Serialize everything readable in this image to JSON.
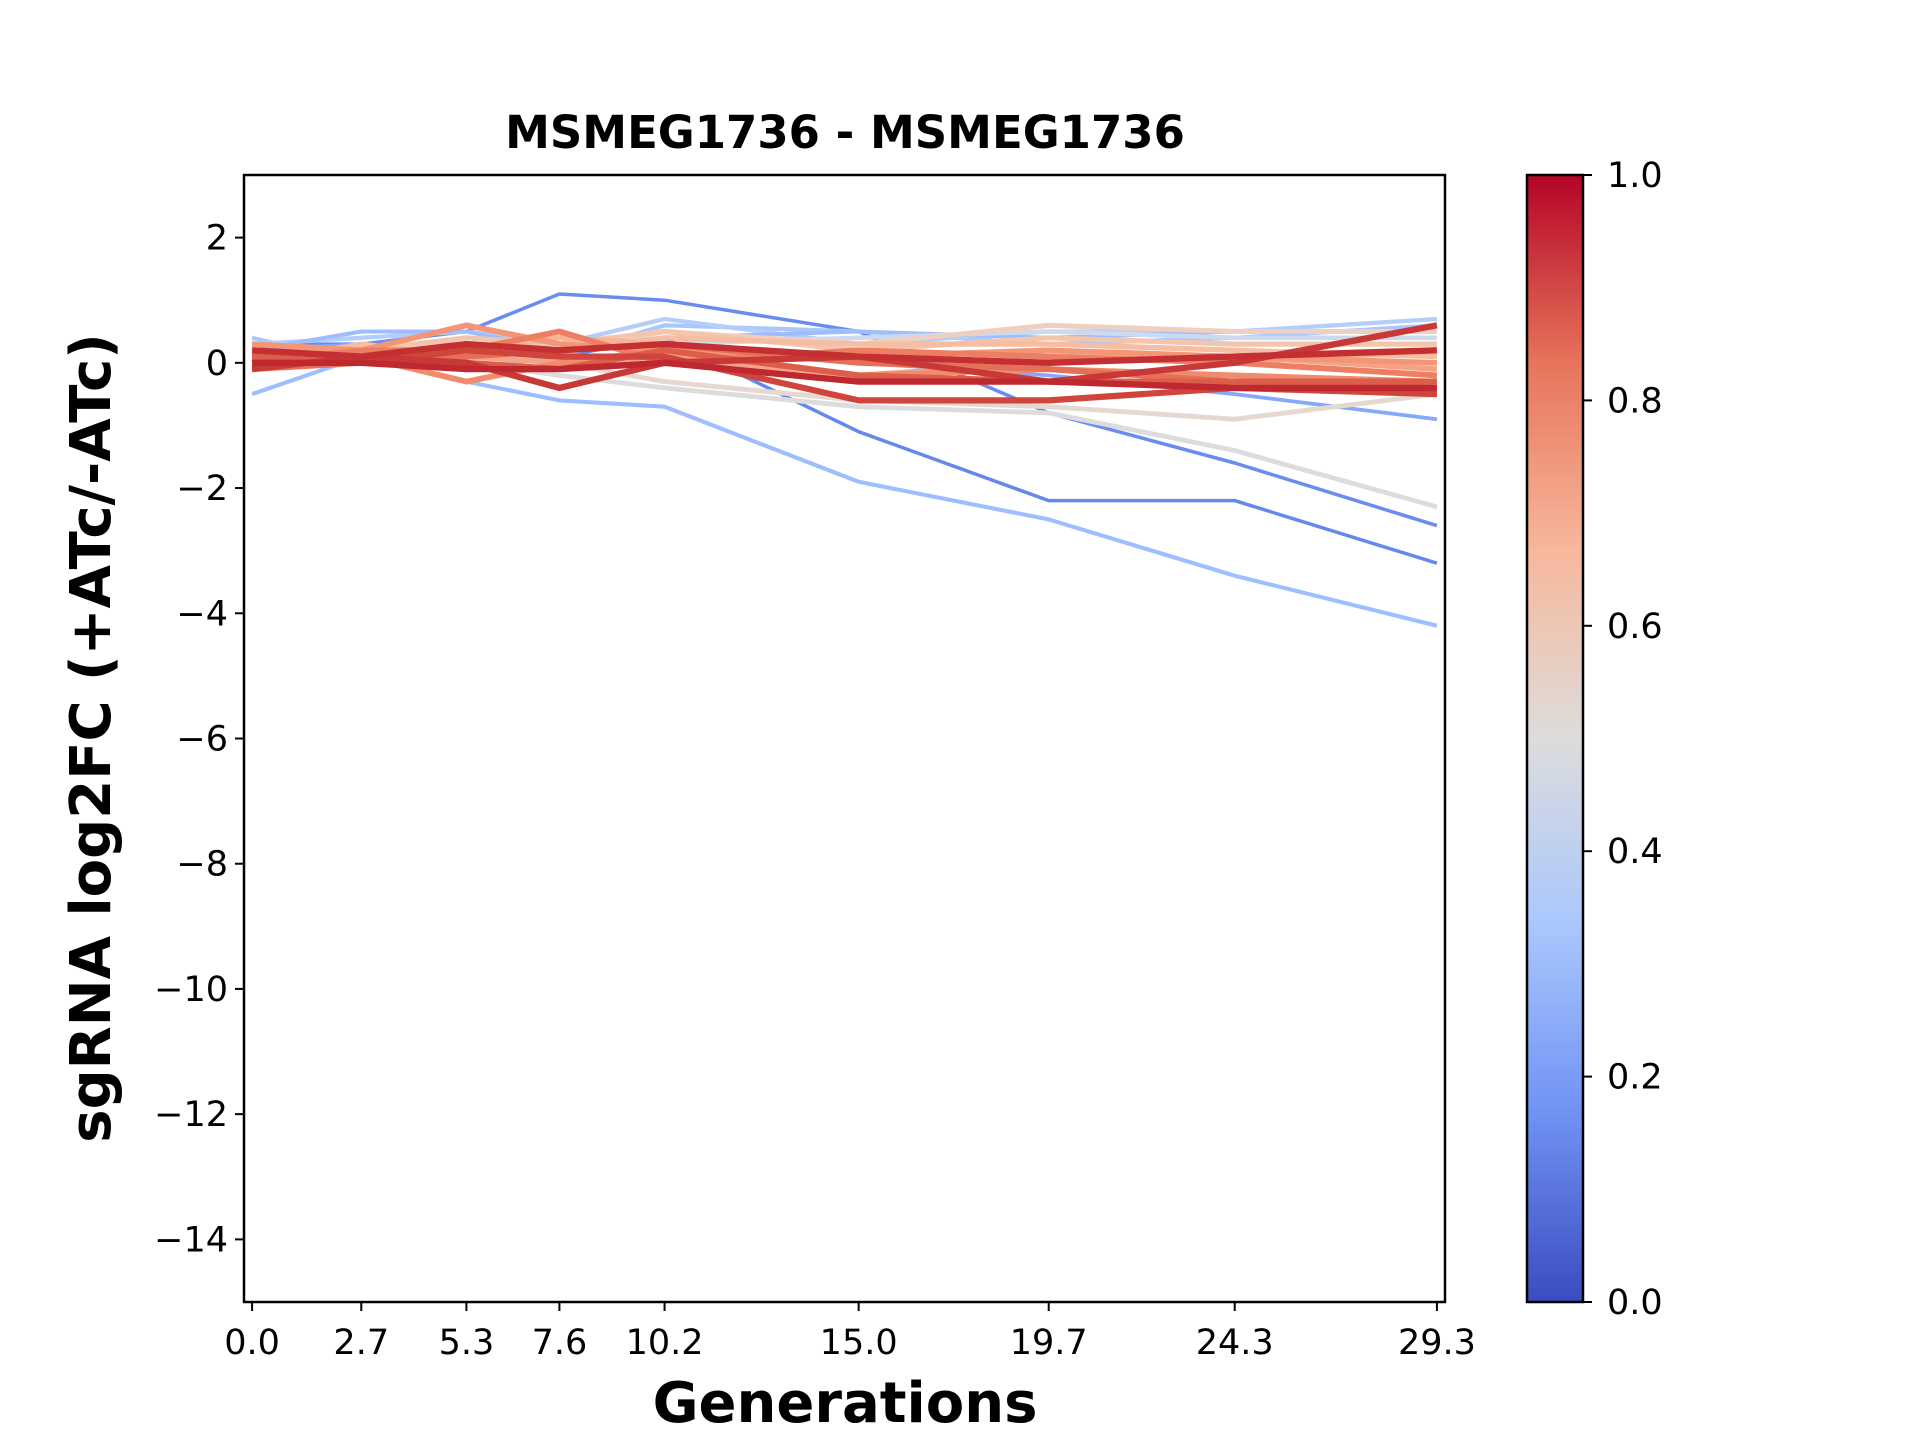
{
  "chart_data": {
    "type": "line",
    "title": "MSMEG1736 - MSMEG1736",
    "xlabel": "Generations",
    "ylabel": "sgRNA log2FC (+ATc/-ATc)",
    "x": [
      0.0,
      2.7,
      5.3,
      7.6,
      10.2,
      15.0,
      19.7,
      24.3,
      29.3
    ],
    "x_tick_labels": [
      "0.0",
      "2.7",
      "5.3",
      "7.6",
      "10.2",
      "15.0",
      "19.7",
      "24.3",
      "29.3"
    ],
    "ylim": [
      -15,
      3
    ],
    "y_ticks": [
      2,
      0,
      -2,
      -4,
      -6,
      -8,
      -10,
      -12,
      -14
    ],
    "y_tick_labels": [
      "2",
      "0",
      "−2",
      "−4",
      "−6",
      "−8",
      "−10",
      "−12",
      "−14"
    ],
    "colorbar": {
      "range": [
        0.0,
        1.0
      ],
      "ticks": [
        "1.0",
        "0.8",
        "0.6",
        "0.4",
        "0.2",
        "0.0"
      ],
      "colormap": "coolwarm",
      "stops": [
        "#3b4cc0",
        "#6f92f3",
        "#aac7fd",
        "#dddcdc",
        "#f7b89c",
        "#e7745b",
        "#b40426"
      ]
    },
    "grid": false,
    "series": [
      {
        "color_value": 0.32,
        "color": "#9ebeff",
        "values": [
          -0.5,
          0.1,
          -0.3,
          -0.6,
          -0.7,
          -1.9,
          -2.5,
          -3.4,
          -4.2
        ]
      },
      {
        "color_value": 0.14,
        "color": "#6687ed",
        "values": [
          0.1,
          0.2,
          0.2,
          0.1,
          0.4,
          -1.1,
          -2.2,
          -2.2,
          -3.2
        ]
      },
      {
        "color_value": 0.15,
        "color": "#6a8bef",
        "values": [
          0.3,
          0.3,
          0.5,
          1.1,
          1.0,
          0.5,
          -0.8,
          -1.6,
          -2.6
        ]
      },
      {
        "color_value": 0.5,
        "color": "#dddcdc",
        "values": [
          0.0,
          0.1,
          0.0,
          -0.2,
          -0.4,
          -0.7,
          -0.8,
          -1.4,
          -2.3
        ]
      },
      {
        "color_value": 0.24,
        "color": "#85a8fc",
        "values": [
          0.2,
          0.3,
          0.1,
          0.0,
          0.2,
          0.0,
          -0.2,
          -0.5,
          -0.9
        ]
      },
      {
        "color_value": 0.35,
        "color": "#aac7fd",
        "values": [
          0.4,
          0.0,
          -0.1,
          0.1,
          0.6,
          0.5,
          0.3,
          0.4,
          0.6
        ]
      },
      {
        "color_value": 0.38,
        "color": "#b5cdfa",
        "values": [
          0.3,
          0.4,
          0.5,
          0.3,
          0.7,
          0.3,
          0.5,
          0.5,
          0.7
        ]
      },
      {
        "color_value": 0.3,
        "color": "#9dbdfc",
        "values": [
          0.2,
          0.5,
          0.5,
          0.2,
          0.4,
          0.5,
          0.4,
          0.5,
          0.5
        ]
      },
      {
        "color_value": 0.45,
        "color": "#cdd9ec",
        "values": [
          0.0,
          0.2,
          0.3,
          0.2,
          0.3,
          0.4,
          0.5,
          0.4,
          0.4
        ]
      },
      {
        "color_value": 0.55,
        "color": "#e5d8d1",
        "values": [
          0.0,
          0.0,
          0.1,
          0.0,
          -0.3,
          -0.6,
          -0.7,
          -0.9,
          -0.5
        ]
      },
      {
        "color_value": 0.6,
        "color": "#efcfbf",
        "values": [
          0.1,
          0.2,
          0.3,
          0.2,
          0.5,
          0.3,
          0.6,
          0.5,
          0.5
        ]
      },
      {
        "color_value": 0.64,
        "color": "#f4c5ad",
        "values": [
          0.3,
          0.2,
          0.4,
          0.3,
          0.5,
          0.2,
          0.4,
          0.3,
          0.3
        ]
      },
      {
        "color_value": 0.68,
        "color": "#f6bda2",
        "values": [
          0.0,
          0.3,
          0.1,
          0.2,
          0.4,
          0.3,
          0.3,
          0.2,
          0.1
        ]
      },
      {
        "color_value": 0.72,
        "color": "#f7b396",
        "values": [
          -0.1,
          0.1,
          0.2,
          0.4,
          0.3,
          0.1,
          0.2,
          0.0,
          0.2
        ]
      },
      {
        "color_value": 0.75,
        "color": "#f6a385",
        "values": [
          0.2,
          0.0,
          0.1,
          0.0,
          0.1,
          -0.2,
          0.0,
          0.1,
          -0.1
        ]
      },
      {
        "color_value": 0.77,
        "color": "#f39577",
        "values": [
          0.3,
          0.2,
          0.6,
          0.3,
          0.2,
          0.1,
          0.2,
          0.1,
          0.0
        ]
      },
      {
        "color_value": 0.8,
        "color": "#f08b6e",
        "values": [
          0.1,
          0.1,
          -0.3,
          0.0,
          0.2,
          -0.2,
          -0.1,
          -0.2,
          -0.3
        ]
      },
      {
        "color_value": 0.82,
        "color": "#ec7f63",
        "values": [
          0.0,
          0.2,
          0.2,
          0.5,
          0.0,
          0.2,
          0.1,
          0.0,
          -0.2
        ]
      },
      {
        "color_value": 0.85,
        "color": "#e57058",
        "values": [
          -0.1,
          0.0,
          0.1,
          0.2,
          0.3,
          0.0,
          -0.1,
          -0.3,
          -0.4
        ]
      },
      {
        "color_value": 0.88,
        "color": "#dc5d4a",
        "values": [
          0.1,
          0.1,
          0.0,
          -0.1,
          0.2,
          -0.2,
          -0.3,
          -0.3,
          -0.3
        ]
      },
      {
        "color_value": 0.92,
        "color": "#cf453c",
        "values": [
          0.0,
          0.0,
          0.2,
          0.1,
          0.1,
          -0.6,
          -0.6,
          -0.4,
          -0.5
        ]
      },
      {
        "color_value": 0.94,
        "color": "#c83836",
        "values": [
          -0.1,
          0.1,
          0.0,
          -0.4,
          0.0,
          0.1,
          -0.3,
          0.0,
          0.6
        ]
      },
      {
        "color_value": 0.96,
        "color": "#c43032",
        "values": [
          0.2,
          0.1,
          0.3,
          0.2,
          0.3,
          0.1,
          0.0,
          0.1,
          0.2
        ]
      },
      {
        "color_value": 0.98,
        "color": "#c0282f",
        "values": [
          0.0,
          0.0,
          -0.1,
          -0.1,
          0.0,
          -0.3,
          -0.3,
          -0.4,
          -0.4
        ]
      }
    ]
  }
}
